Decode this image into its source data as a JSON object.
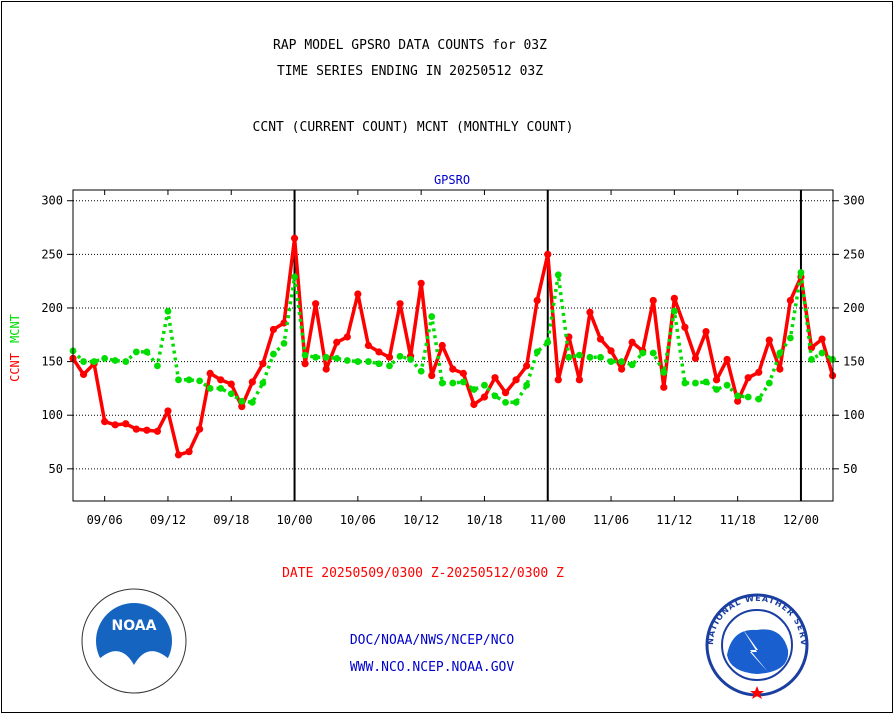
{
  "header": {
    "title1": "RAP MODEL GPSRO DATA COUNTS for 03Z",
    "title2": "TIME SERIES ENDING IN 20250512 03Z",
    "subtitle": "CCNT (CURRENT COUNT) MCNT (MONTHLY COUNT)"
  },
  "footer": {
    "date_range": "DATE 20250509/0300 Z-20250512/0300 Z",
    "org": "DOC/NOAA/NWS/NCEP/NCO",
    "url": "WWW.NCO.NCEP.NOAA.GOV"
  },
  "logos": {
    "noaa_label": "NOAA",
    "nws_label": "NATIONAL WEATHER SERVICE"
  },
  "colors": {
    "ccnt": "#ff0000",
    "mcnt": "#00dd00",
    "panel_title": "#0000cc",
    "text": "#000000"
  },
  "chart_data": {
    "type": "line",
    "title": "GPSRO",
    "ylabel_left": [
      "CCNT",
      "MCNT"
    ],
    "ylim": [
      20,
      310
    ],
    "yticks": [
      50,
      100,
      150,
      200,
      250,
      300
    ],
    "grid": true,
    "xtick_labels": [
      "09/06",
      "09/12",
      "09/18",
      "10/00",
      "10/06",
      "10/12",
      "10/18",
      "11/00",
      "11/06",
      "11/12",
      "11/18",
      "12/00"
    ],
    "xtick_index": [
      3,
      9,
      15,
      21,
      27,
      33,
      39,
      45,
      51,
      57,
      63,
      69
    ],
    "day_boundaries": [
      "10/00",
      "11/00",
      "12/00"
    ],
    "num_points": 73,
    "series": [
      {
        "name": "CCNT",
        "values": [
          153,
          138,
          148,
          94,
          91,
          92,
          87,
          86,
          85,
          104,
          63,
          66,
          87,
          139,
          133,
          129,
          108,
          131,
          148,
          180,
          186,
          265,
          148,
          204,
          143,
          168,
          173,
          213,
          165,
          159,
          154,
          204,
          155,
          223,
          137,
          165,
          143,
          139,
          110,
          117,
          135,
          121,
          133,
          146,
          207,
          250,
          133,
          173,
          133,
          196,
          171,
          160,
          143,
          168,
          160,
          207,
          126,
          209,
          182,
          153,
          178,
          133,
          152,
          113,
          135,
          140,
          170,
          143,
          207,
          229,
          163,
          171,
          137
        ]
      },
      {
        "name": "MCNT",
        "values": [
          160,
          150,
          150,
          153,
          151,
          150,
          159,
          159,
          146,
          197,
          133,
          133,
          132,
          125,
          125,
          120,
          113,
          112,
          130,
          157,
          167,
          229,
          156,
          154,
          154,
          153,
          151,
          150,
          150,
          148,
          146,
          155,
          152,
          141,
          192,
          130,
          130,
          131,
          124,
          128,
          118,
          112,
          112,
          128,
          159,
          168,
          231,
          154,
          156,
          154,
          154,
          150,
          150,
          147,
          158,
          158,
          140,
          197,
          130,
          130,
          131,
          124,
          128,
          118,
          117,
          115,
          130,
          158,
          172,
          233,
          152,
          158,
          152
        ]
      }
    ]
  }
}
